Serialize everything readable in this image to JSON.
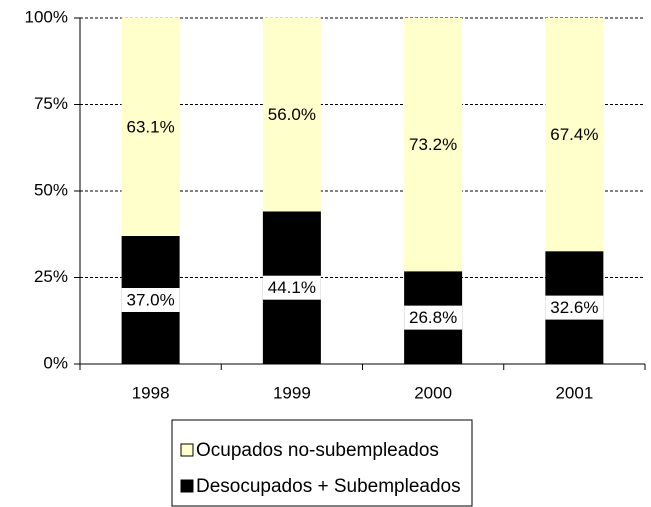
{
  "chart_data": {
    "type": "stacked_bar",
    "categories": [
      "1998",
      "1999",
      "2000",
      "2001"
    ],
    "series": [
      {
        "name": "Desocupados + Subempleados",
        "color": "#000000",
        "values": [
          37.0,
          44.1,
          26.8,
          32.6
        ],
        "value_labels": [
          "37.0%",
          "44.1%",
          "26.8%",
          "32.6%"
        ]
      },
      {
        "name": "Ocupados no-subempleados",
        "color": "#ffffcc",
        "values": [
          63.1,
          56.0,
          73.2,
          67.4
        ],
        "value_labels": [
          "63.1%",
          "56.0%",
          "73.2%",
          "67.4%"
        ]
      }
    ],
    "ylim": [
      0,
      100
    ],
    "yticks": [
      {
        "value": 0,
        "label": "0%"
      },
      {
        "value": 25,
        "label": "25%"
      },
      {
        "value": 50,
        "label": "50%"
      },
      {
        "value": 75,
        "label": "75%"
      },
      {
        "value": 100,
        "label": "100%"
      }
    ],
    "grid": true
  }
}
